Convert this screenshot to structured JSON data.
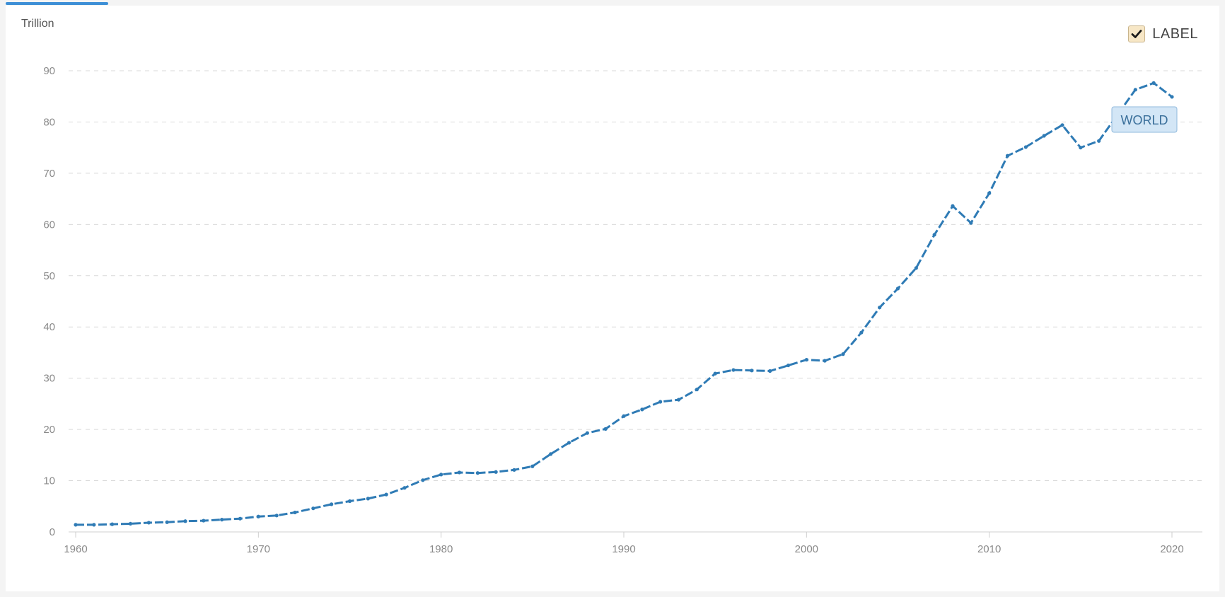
{
  "unit_label": "Trillion",
  "label_toggle": {
    "text": "LABEL",
    "checked": true,
    "icon": "checkmark-icon"
  },
  "colors": {
    "series": "#2f7bb5",
    "grid": "#d9d9d9",
    "tag_bg": "#d3e6f6",
    "tag_border": "#8fb8dc",
    "tab_accent": "#3d8fd6"
  },
  "chart_data": {
    "type": "line",
    "title": "",
    "xlabel": "",
    "ylabel": "Trillion",
    "ylim": [
      0,
      90
    ],
    "xlim": [
      1960,
      2020
    ],
    "x_ticks": [
      "1960",
      "1970",
      "1980",
      "1990",
      "2000",
      "2010",
      "2020"
    ],
    "y_ticks": [
      "0",
      "10",
      "20",
      "30",
      "40",
      "50",
      "60",
      "70",
      "80",
      "90"
    ],
    "grid": "horizontal dashed",
    "legend": "none",
    "series": [
      {
        "name": "WORLD",
        "x": [
          1960,
          1961,
          1962,
          1963,
          1964,
          1965,
          1966,
          1967,
          1968,
          1969,
          1970,
          1971,
          1972,
          1973,
          1974,
          1975,
          1976,
          1977,
          1978,
          1979,
          1980,
          1981,
          1982,
          1983,
          1984,
          1985,
          1986,
          1987,
          1988,
          1989,
          1990,
          1991,
          1992,
          1993,
          1994,
          1995,
          1996,
          1997,
          1998,
          1999,
          2000,
          2001,
          2002,
          2003,
          2004,
          2005,
          2006,
          2007,
          2008,
          2009,
          2010,
          2011,
          2012,
          2013,
          2014,
          2015,
          2016,
          2017,
          2018,
          2019,
          2020
        ],
        "values": [
          1.4,
          1.4,
          1.5,
          1.6,
          1.8,
          1.9,
          2.1,
          2.2,
          2.4,
          2.6,
          3.0,
          3.2,
          3.8,
          4.6,
          5.4,
          6.0,
          6.5,
          7.3,
          8.6,
          10.1,
          11.2,
          11.6,
          11.5,
          11.7,
          12.1,
          12.8,
          15.2,
          17.4,
          19.3,
          20.1,
          22.6,
          23.9,
          25.4,
          25.8,
          27.8,
          30.9,
          31.6,
          31.5,
          31.4,
          32.5,
          33.6,
          33.4,
          34.7,
          38.9,
          43.8,
          47.5,
          51.5,
          58.0,
          63.6,
          60.3,
          66.1,
          73.4,
          75.1,
          77.3,
          79.4,
          75.0,
          76.3,
          81.3,
          86.3,
          87.6,
          84.9
        ]
      }
    ],
    "annotations": [
      "WORLD"
    ]
  }
}
